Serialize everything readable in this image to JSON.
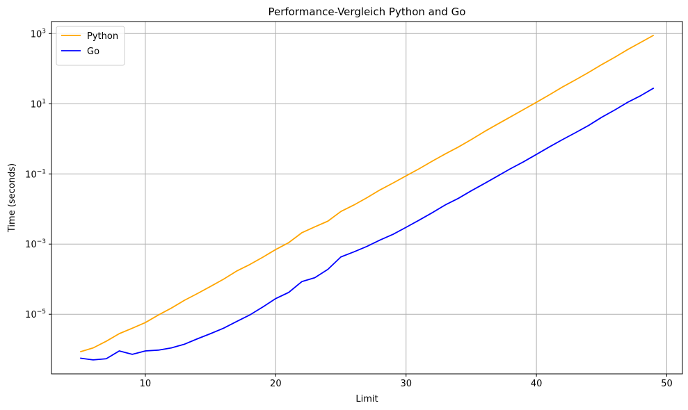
{
  "chart_data": {
    "type": "line",
    "title": "Performance-Vergleich Python and Go",
    "xlabel": "Limit",
    "ylabel": "Time (seconds)",
    "xlim": [
      2.8,
      51.2
    ],
    "ylim": [
      2e-07,
      2200
    ],
    "yscale": "log",
    "grid": true,
    "legend_position": "top-left",
    "x_ticks": [
      10,
      20,
      30,
      40,
      50
    ],
    "y_ticks": [
      {
        "value": 1e-05,
        "base": "10",
        "exp": "−5"
      },
      {
        "value": 0.001,
        "base": "10",
        "exp": "−3"
      },
      {
        "value": 0.1,
        "base": "10",
        "exp": "−1"
      },
      {
        "value": 10,
        "base": "10",
        "exp": "1"
      },
      {
        "value": 1000,
        "base": "10",
        "exp": "3"
      }
    ],
    "x": [
      5,
      6,
      7,
      8,
      9,
      10,
      11,
      12,
      13,
      14,
      15,
      16,
      17,
      18,
      19,
      20,
      21,
      22,
      23,
      24,
      25,
      26,
      27,
      28,
      29,
      30,
      31,
      32,
      33,
      34,
      35,
      36,
      37,
      38,
      39,
      40,
      41,
      42,
      43,
      44,
      45,
      46,
      47,
      48,
      49
    ],
    "series": [
      {
        "name": "Python",
        "color": "#ffa500",
        "values": [
          8.5e-07,
          1.1e-06,
          1.7e-06,
          2.8e-06,
          4e-06,
          5.8e-06,
          9.5e-06,
          1.5e-05,
          2.5e-05,
          3.9e-05,
          6.2e-05,
          0.0001,
          0.00017,
          0.00026,
          0.00042,
          0.0007,
          0.0011,
          0.0021,
          0.0031,
          0.0045,
          0.0085,
          0.013,
          0.021,
          0.035,
          0.055,
          0.088,
          0.14,
          0.23,
          0.37,
          0.58,
          0.95,
          1.6,
          2.6,
          4.2,
          6.8,
          11,
          18,
          30,
          48,
          78,
          130,
          210,
          350,
          560,
          900
        ]
      },
      {
        "name": "Go",
        "color": "#0000ff",
        "values": [
          5.6e-07,
          5e-07,
          5.4e-07,
          9e-07,
          7.2e-07,
          9e-07,
          9.5e-07,
          1.1e-06,
          1.4e-06,
          2e-06,
          2.8e-06,
          4e-06,
          6.2e-06,
          9.5e-06,
          1.6e-05,
          2.8e-05,
          4.2e-05,
          8.5e-05,
          0.00011,
          0.00019,
          0.00043,
          0.0006,
          0.00086,
          0.0013,
          0.0019,
          0.003,
          0.0048,
          0.0078,
          0.013,
          0.02,
          0.033,
          0.053,
          0.086,
          0.14,
          0.22,
          0.36,
          0.59,
          0.95,
          1.5,
          2.4,
          4.1,
          6.6,
          11,
          17,
          28
        ]
      }
    ]
  }
}
